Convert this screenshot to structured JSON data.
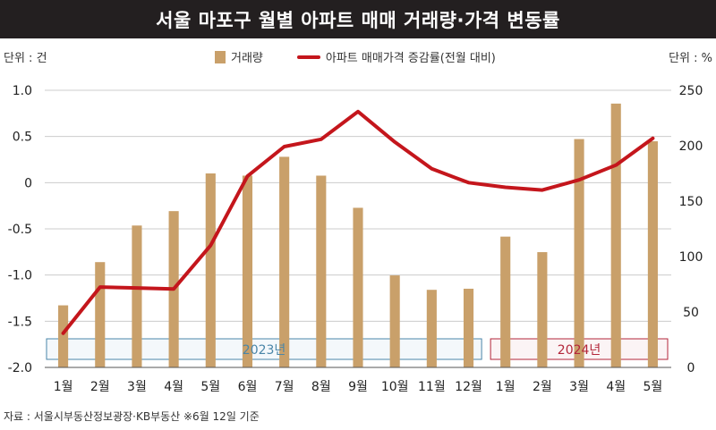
{
  "header": {
    "title": "서울 마포구 월별 아파트 매매 거래량·가격 변동률"
  },
  "units": {
    "left": "단위 : 건",
    "right": "단위 : %"
  },
  "legend": {
    "bar_label": "거래량",
    "line_label": "아파트 매매가격 증감률(전월 대비)"
  },
  "source": "자료 : 서울시부동산정보광장·KB부동산 ※6월 12일 기준",
  "periods": [
    {
      "label": "2023년",
      "color": "#4a86a8"
    },
    {
      "label": "2024년",
      "color": "#b3263a"
    }
  ],
  "colors": {
    "bar": "#c9a06a",
    "line": "#c4161c"
  },
  "chart_data": {
    "type": "bar",
    "categories": [
      "1월",
      "2월",
      "3월",
      "4월",
      "5월",
      "6월",
      "7월",
      "8월",
      "9월",
      "10월",
      "11월",
      "12월",
      "1월",
      "2월",
      "3월",
      "4월",
      "5월"
    ],
    "series": [
      {
        "name": "거래량",
        "type": "bar",
        "axis": "right",
        "values": [
          56,
          95,
          128,
          141,
          175,
          173,
          190,
          173,
          144,
          83,
          70,
          71,
          118,
          104,
          206,
          238,
          204
        ]
      },
      {
        "name": "아파트 매매가격 증감률(전월 대비)",
        "type": "line",
        "axis": "left",
        "values": [
          -1.63,
          -1.13,
          -1.14,
          -1.15,
          -0.68,
          0.07,
          0.39,
          0.47,
          0.77,
          0.44,
          0.15,
          0.0,
          -0.05,
          -0.08,
          0.03,
          0.19,
          0.48
        ]
      }
    ],
    "y_left": {
      "ticks": [
        "1.0",
        "0.5",
        "0",
        "-0.5",
        "-1.0",
        "-1.5",
        "-2.0"
      ],
      "range": [
        -2.0,
        1.0
      ]
    },
    "y_right": {
      "ticks": [
        "250",
        "200",
        "150",
        "100",
        "50",
        "0"
      ],
      "range": [
        0,
        250
      ]
    },
    "grid": true,
    "legend_position": "top"
  }
}
